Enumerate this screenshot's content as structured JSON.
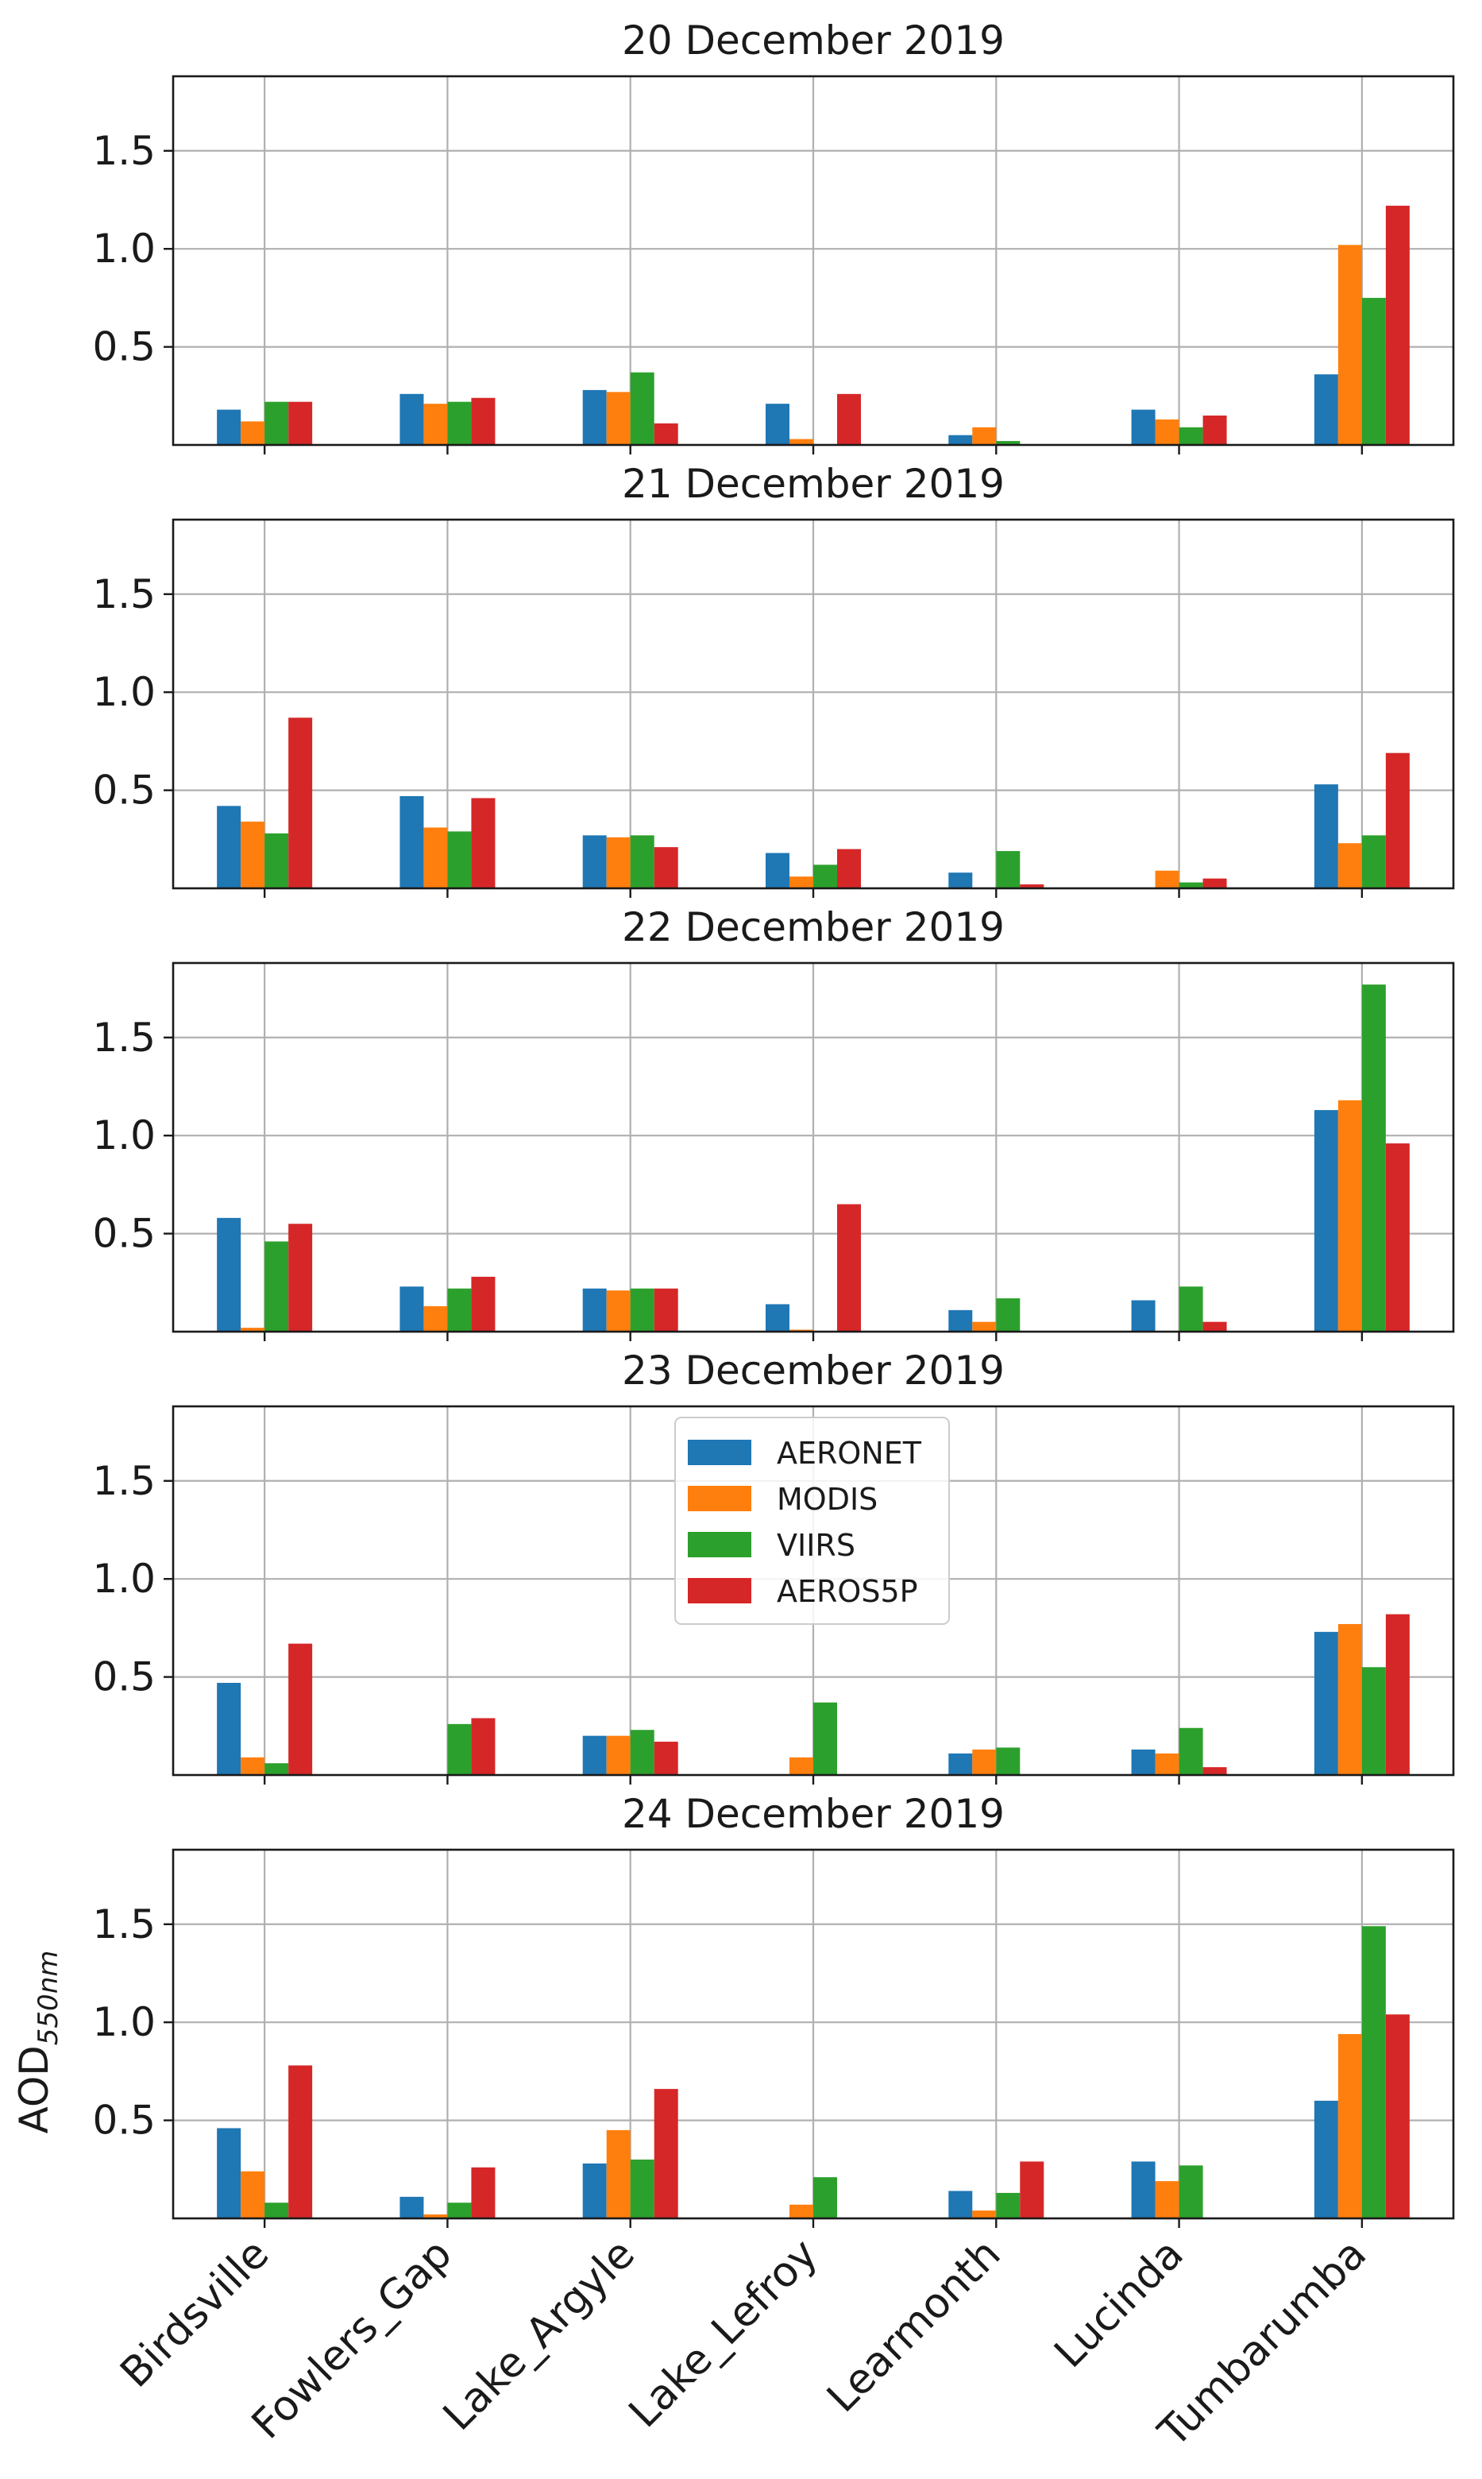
{
  "chart_data": {
    "type": "bar",
    "categories": [
      "Birdsville",
      "Fowlers_Gap",
      "Lake_Argyle",
      "Lake_Lefroy",
      "Learmonth",
      "Lucinda",
      "Tumbarumba"
    ],
    "ylabel_main": "AOD",
    "ylabel_sub": "550nm",
    "ylim": [
      0,
      1.88
    ],
    "yticks": [
      0.5,
      1.0,
      1.5
    ],
    "ytick_labels": [
      "0.5",
      "1.0",
      "1.5"
    ],
    "grid": true,
    "legend": {
      "placement": "upper center of the 23 December 2019 panel",
      "entries": [
        "AERONET",
        "MODIS",
        "VIIRS",
        "AEROS5P"
      ]
    },
    "series_colors": {
      "AERONET": "#1f77b4",
      "MODIS": "#ff7f0e",
      "VIIRS": "#2ca02c",
      "AEROS5P": "#d62728"
    },
    "panels": [
      {
        "title": "20 December 2019",
        "series": [
          {
            "name": "AERONET",
            "values": [
              0.18,
              0.26,
              0.28,
              0.21,
              0.05,
              0.18,
              0.36
            ]
          },
          {
            "name": "MODIS",
            "values": [
              0.12,
              0.21,
              0.27,
              0.03,
              0.09,
              0.13,
              1.02
            ]
          },
          {
            "name": "VIIRS",
            "values": [
              0.22,
              0.22,
              0.37,
              0.0,
              0.02,
              0.09,
              0.75
            ]
          },
          {
            "name": "AEROS5P",
            "values": [
              0.22,
              0.24,
              0.11,
              0.26,
              0.0,
              0.15,
              1.22
            ]
          }
        ]
      },
      {
        "title": "21 December 2019",
        "series": [
          {
            "name": "AERONET",
            "values": [
              0.42,
              0.47,
              0.27,
              0.18,
              0.08,
              0.0,
              0.53
            ]
          },
          {
            "name": "MODIS",
            "values": [
              0.34,
              0.31,
              0.26,
              0.06,
              0.0,
              0.09,
              0.23
            ]
          },
          {
            "name": "VIIRS",
            "values": [
              0.28,
              0.29,
              0.27,
              0.12,
              0.19,
              0.03,
              0.27
            ]
          },
          {
            "name": "AEROS5P",
            "values": [
              0.87,
              0.46,
              0.21,
              0.2,
              0.02,
              0.05,
              0.69
            ]
          }
        ]
      },
      {
        "title": "22 December 2019",
        "series": [
          {
            "name": "AERONET",
            "values": [
              0.58,
              0.23,
              0.22,
              0.14,
              0.11,
              0.16,
              1.13
            ]
          },
          {
            "name": "MODIS",
            "values": [
              0.02,
              0.13,
              0.21,
              0.01,
              0.05,
              0.0,
              1.18
            ]
          },
          {
            "name": "VIIRS",
            "values": [
              0.46,
              0.22,
              0.22,
              0.0,
              0.17,
              0.23,
              1.77
            ]
          },
          {
            "name": "AEROS5P",
            "values": [
              0.55,
              0.28,
              0.22,
              0.65,
              0.0,
              0.05,
              0.96
            ]
          }
        ]
      },
      {
        "title": "23 December 2019",
        "series": [
          {
            "name": "AERONET",
            "values": [
              0.47,
              0.0,
              0.2,
              0.0,
              0.11,
              0.13,
              0.73
            ]
          },
          {
            "name": "MODIS",
            "values": [
              0.09,
              0.0,
              0.2,
              0.09,
              0.13,
              0.11,
              0.77
            ]
          },
          {
            "name": "VIIRS",
            "values": [
              0.06,
              0.26,
              0.23,
              0.37,
              0.14,
              0.24,
              0.55
            ]
          },
          {
            "name": "AEROS5P",
            "values": [
              0.67,
              0.29,
              0.17,
              0.0,
              0.0,
              0.04,
              0.82
            ]
          }
        ]
      },
      {
        "title": "24 December 2019",
        "series": [
          {
            "name": "AERONET",
            "values": [
              0.46,
              0.11,
              0.28,
              0.0,
              0.14,
              0.29,
              0.6
            ]
          },
          {
            "name": "MODIS",
            "values": [
              0.24,
              0.02,
              0.45,
              0.07,
              0.04,
              0.19,
              0.94
            ]
          },
          {
            "name": "VIIRS",
            "values": [
              0.08,
              0.08,
              0.3,
              0.21,
              0.13,
              0.27,
              1.49
            ]
          },
          {
            "name": "AEROS5P",
            "values": [
              0.78,
              0.26,
              0.66,
              0.0,
              0.29,
              0.0,
              1.04
            ]
          }
        ]
      }
    ]
  }
}
